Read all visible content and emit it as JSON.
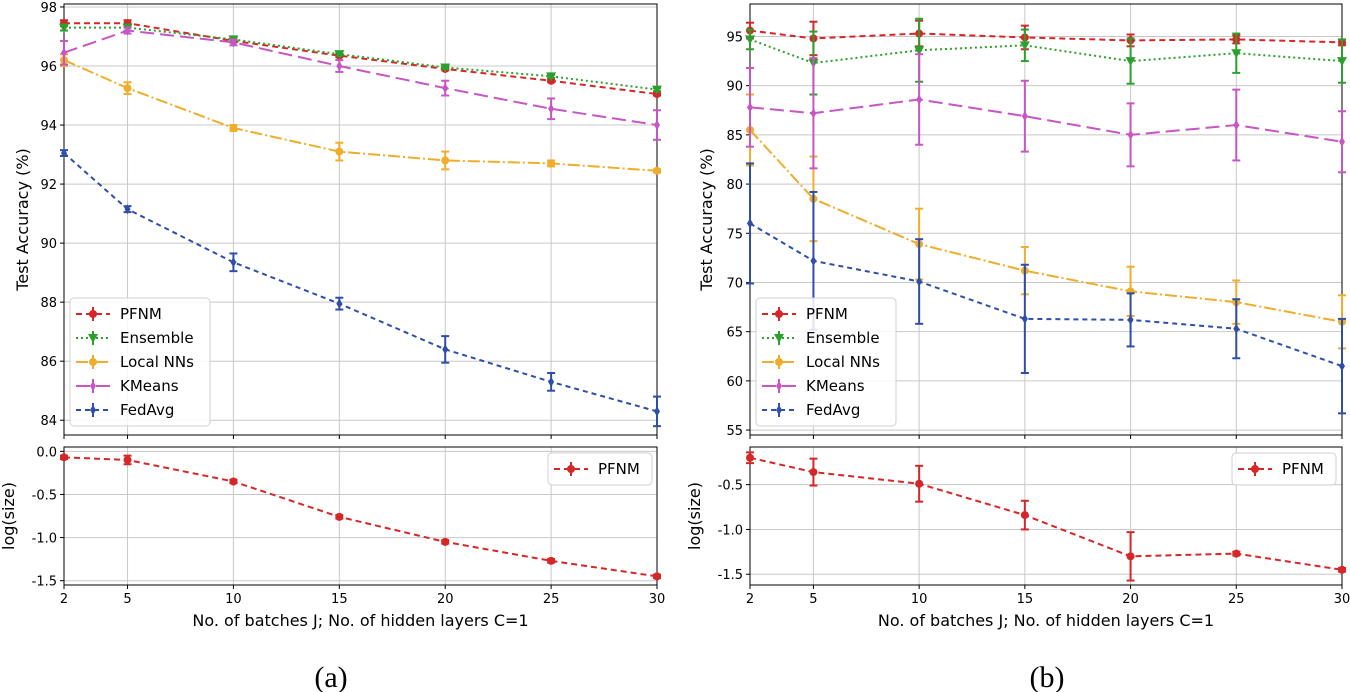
{
  "chart_data": [
    {
      "id": "a-top",
      "type": "line",
      "ylabel": "Test Accuracy (%)",
      "xlabel": "",
      "x": [
        2,
        5,
        10,
        15,
        20,
        25,
        30
      ],
      "xlim": [
        2,
        30
      ],
      "ylim": [
        83.5,
        98.1
      ],
      "yticks": [
        84,
        86,
        88,
        90,
        92,
        94,
        96,
        98
      ],
      "xticks": [
        2,
        5,
        10,
        15,
        20,
        25,
        30
      ],
      "grid": true,
      "legend": "bottom-left",
      "series": [
        {
          "name": "PFNM",
          "color": "#d62728",
          "dash": "6,4",
          "marker": "circle",
          "values": [
            97.45,
            97.45,
            96.85,
            96.35,
            95.9,
            95.5,
            95.05
          ],
          "err": [
            0.1,
            0.1,
            0.05,
            0.05,
            0.05,
            0.05,
            0.05
          ]
        },
        {
          "name": "Ensemble",
          "color": "#2ca02c",
          "dash": "2,3",
          "marker": "triangle",
          "values": [
            97.3,
            97.3,
            96.9,
            96.4,
            95.95,
            95.65,
            95.2
          ],
          "err": [
            0.1,
            0.1,
            0.05,
            0.05,
            0.05,
            0.05,
            0.05
          ]
        },
        {
          "name": "Local NNs",
          "color": "#f0ad2b",
          "dash": "12,3,2,3",
          "marker": "circle",
          "values": [
            96.2,
            95.25,
            93.9,
            93.1,
            92.8,
            92.7,
            92.45
          ],
          "err": [
            0.2,
            0.2,
            0.1,
            0.3,
            0.3,
            0.1,
            0.05
          ]
        },
        {
          "name": "KMeans",
          "color": "#c656c4",
          "dash": "14,6",
          "marker": "diamond",
          "values": [
            96.45,
            97.2,
            96.8,
            96.0,
            95.25,
            94.55,
            94.0
          ],
          "err": [
            0.4,
            0.1,
            0.1,
            0.2,
            0.25,
            0.35,
            0.5
          ]
        },
        {
          "name": "FedAvg",
          "color": "#2f4ea8",
          "dash": "5,4",
          "marker": "diamond",
          "values": [
            93.05,
            91.15,
            89.35,
            87.95,
            86.4,
            85.3,
            84.3
          ],
          "err": [
            0.1,
            0.1,
            0.3,
            0.2,
            0.45,
            0.3,
            0.5
          ]
        }
      ]
    },
    {
      "id": "a-bottom",
      "type": "line",
      "ylabel": "log(size)",
      "xlabel": "No. of batches J; No. of hidden layers C=1",
      "x": [
        2,
        5,
        10,
        15,
        20,
        25,
        30
      ],
      "xlim": [
        2,
        30
      ],
      "ylim": [
        -1.55,
        0.05
      ],
      "yticks": [
        0.0,
        -0.5,
        -1.0,
        -1.5
      ],
      "yticklabels": [
        "0.0",
        "-0.5",
        "-1.0",
        "-1.5"
      ],
      "xticks": [
        2,
        5,
        10,
        15,
        20,
        25,
        30
      ],
      "grid": true,
      "legend": "top-right",
      "series": [
        {
          "name": "PFNM",
          "color": "#d62728",
          "dash": "6,4",
          "marker": "circle",
          "values": [
            -0.07,
            -0.1,
            -0.35,
            -0.76,
            -1.05,
            -1.27,
            -1.45
          ],
          "err": [
            0.02,
            0.05,
            0.02,
            0.02,
            0.02,
            0.02,
            0.02
          ]
        }
      ]
    },
    {
      "id": "b-top",
      "type": "line",
      "ylabel": "Test Accuracy (%)",
      "xlabel": "",
      "x": [
        2,
        5,
        10,
        15,
        20,
        25,
        30
      ],
      "xlim": [
        2,
        30
      ],
      "ylim": [
        54.5,
        98.3
      ],
      "yticks": [
        55,
        60,
        65,
        70,
        75,
        80,
        85,
        90,
        95
      ],
      "xticks": [
        2,
        5,
        10,
        15,
        20,
        25,
        30
      ],
      "grid": true,
      "legend": "bottom-left",
      "series": [
        {
          "name": "PFNM",
          "color": "#d62728",
          "dash": "6,4",
          "marker": "circle",
          "values": [
            95.6,
            94.8,
            95.3,
            94.9,
            94.6,
            94.7,
            94.4
          ],
          "err": [
            0.8,
            1.7,
            1.3,
            1.2,
            0.6,
            0.4,
            0.3
          ]
        },
        {
          "name": "Ensemble",
          "color": "#2ca02c",
          "dash": "2,3",
          "marker": "triangle",
          "values": [
            94.7,
            92.3,
            93.6,
            94.1,
            92.5,
            93.3,
            92.5
          ],
          "err": [
            1.0,
            3.2,
            3.2,
            1.6,
            2.3,
            2.0,
            2.2
          ]
        },
        {
          "name": "Local NNs",
          "color": "#f0ad2b",
          "dash": "12,3,2,3",
          "marker": "circle",
          "values": [
            85.5,
            78.5,
            73.9,
            71.2,
            69.1,
            68.0,
            66.0
          ],
          "err": [
            3.6,
            4.3,
            3.6,
            2.4,
            2.5,
            2.2,
            2.7
          ]
        },
        {
          "name": "KMeans",
          "color": "#c656c4",
          "dash": "14,6",
          "marker": "diamond",
          "values": [
            87.8,
            87.2,
            88.6,
            86.9,
            85.0,
            86.0,
            84.3
          ],
          "err": [
            4.0,
            5.6,
            4.6,
            3.6,
            3.2,
            3.6,
            3.1
          ]
        },
        {
          "name": "FedAvg",
          "color": "#2f4ea8",
          "dash": "5,4",
          "marker": "diamond",
          "values": [
            76.0,
            72.2,
            70.1,
            66.3,
            66.2,
            65.3,
            61.5
          ],
          "err": [
            6.1,
            7.0,
            4.3,
            5.5,
            2.7,
            3.0,
            4.8
          ]
        }
      ]
    },
    {
      "id": "b-bottom",
      "type": "line",
      "ylabel": "log(size)",
      "xlabel": "No. of batches J; No. of hidden layers C=1",
      "x": [
        2,
        5,
        10,
        15,
        20,
        25,
        30
      ],
      "xlim": [
        2,
        30
      ],
      "ylim": [
        -1.62,
        -0.08
      ],
      "yticks": [
        -0.5,
        -1.0,
        -1.5
      ],
      "yticklabels": [
        "-0.5",
        "-1.0",
        "-1.5"
      ],
      "xticks": [
        2,
        5,
        10,
        15,
        20,
        25,
        30
      ],
      "grid": true,
      "legend": "top-right",
      "series": [
        {
          "name": "PFNM",
          "color": "#d62728",
          "dash": "6,4",
          "marker": "circle",
          "values": [
            -0.2,
            -0.36,
            -0.49,
            -0.84,
            -1.3,
            -1.27,
            -1.45
          ],
          "err": [
            0.06,
            0.15,
            0.2,
            0.16,
            0.27,
            0.02,
            0.02
          ]
        }
      ]
    }
  ],
  "captions": {
    "a": "(a)",
    "b": "(b)"
  }
}
